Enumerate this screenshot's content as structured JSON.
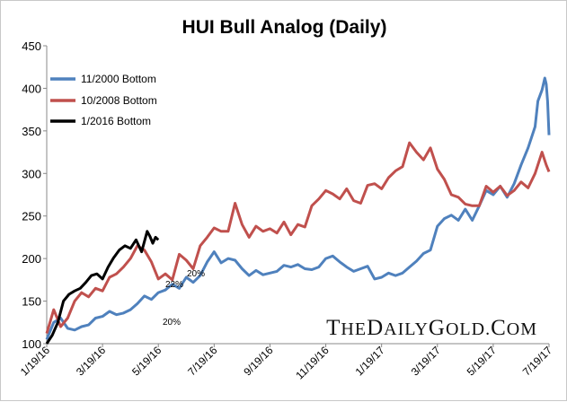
{
  "chart_data": {
    "type": "line",
    "title": "HUI Bull Analog (Daily)",
    "ylim": [
      100,
      450
    ],
    "y_ticks": [
      "100",
      "150",
      "200",
      "250",
      "300",
      "350",
      "400",
      "450"
    ],
    "x_ticks": [
      "1/19/16",
      "3/19/16",
      "5/19/16",
      "7/19/16",
      "9/19/16",
      "11/19/16",
      "1/19/17",
      "3/19/17",
      "5/19/17",
      "7/19/17"
    ],
    "x_unit": "trading days since 1/19/16",
    "x_tick_days": [
      0,
      40,
      80,
      120,
      160,
      200,
      240,
      280,
      320,
      360
    ],
    "xlim": [
      0,
      360
    ],
    "series": [
      {
        "name": "11/2000 Bottom",
        "color": "#4f81bd",
        "x": [
          0,
          5,
          10,
          15,
          20,
          25,
          30,
          35,
          40,
          45,
          50,
          55,
          60,
          65,
          70,
          75,
          80,
          85,
          90,
          95,
          100,
          105,
          110,
          115,
          120,
          125,
          130,
          135,
          140,
          145,
          150,
          155,
          160,
          165,
          170,
          175,
          180,
          185,
          190,
          195,
          200,
          205,
          210,
          215,
          220,
          225,
          230,
          235,
          240,
          245,
          250,
          255,
          260,
          265,
          270,
          275,
          280,
          285,
          290,
          295,
          300,
          305,
          310,
          315,
          320,
          325,
          330,
          335,
          340,
          345,
          350,
          352,
          355,
          357,
          358,
          359,
          360
        ],
        "values": [
          105,
          125,
          130,
          118,
          116,
          120,
          122,
          130,
          132,
          138,
          134,
          136,
          140,
          147,
          156,
          152,
          160,
          163,
          170,
          165,
          178,
          172,
          180,
          196,
          208,
          195,
          200,
          198,
          188,
          180,
          186,
          181,
          183,
          185,
          192,
          190,
          193,
          188,
          187,
          190,
          200,
          203,
          196,
          190,
          185,
          188,
          191,
          176,
          178,
          183,
          180,
          183,
          190,
          197,
          206,
          210,
          238,
          247,
          251,
          245,
          258,
          245,
          262,
          280,
          275,
          285,
          272,
          288,
          310,
          330,
          355,
          385,
          398,
          412,
          405,
          385,
          345
        ]
      },
      {
        "name": "10/2008 Bottom",
        "color": "#c0504d",
        "x": [
          0,
          5,
          10,
          15,
          20,
          25,
          30,
          35,
          40,
          45,
          50,
          55,
          60,
          65,
          70,
          75,
          80,
          85,
          90,
          95,
          100,
          105,
          110,
          115,
          120,
          125,
          130,
          135,
          140,
          145,
          150,
          155,
          160,
          165,
          170,
          175,
          180,
          185,
          190,
          195,
          200,
          205,
          210,
          215,
          220,
          225,
          230,
          235,
          240,
          245,
          250,
          255,
          260,
          265,
          270,
          275,
          280,
          285,
          290,
          295,
          300,
          305,
          310,
          315,
          320,
          325,
          330,
          335,
          340,
          345,
          350,
          355,
          358,
          360
        ],
        "values": [
          112,
          140,
          120,
          130,
          150,
          160,
          155,
          165,
          162,
          178,
          182,
          190,
          200,
          215,
          210,
          196,
          176,
          182,
          175,
          205,
          198,
          188,
          215,
          225,
          236,
          232,
          232,
          265,
          240,
          225,
          238,
          232,
          235,
          230,
          243,
          228,
          240,
          237,
          262,
          270,
          280,
          276,
          270,
          282,
          268,
          265,
          286,
          288,
          282,
          295,
          303,
          308,
          336,
          325,
          316,
          330,
          305,
          293,
          275,
          272,
          264,
          262,
          262,
          285,
          278,
          285,
          274,
          280,
          290,
          283,
          300,
          325,
          310,
          302
        ]
      },
      {
        "name": "1/2016 Bottom",
        "color": "#000000",
        "x": [
          0,
          4,
          8,
          12,
          16,
          20,
          24,
          28,
          32,
          36,
          40,
          44,
          48,
          52,
          56,
          60,
          64,
          68,
          72,
          74,
          76,
          78,
          80
        ],
        "values": [
          100,
          110,
          125,
          150,
          158,
          162,
          165,
          172,
          180,
          182,
          176,
          190,
          201,
          210,
          215,
          212,
          222,
          208,
          232,
          226,
          218,
          225,
          222
        ]
      }
    ],
    "annotations": [
      "20%",
      "22%",
      "20%"
    ]
  }
}
